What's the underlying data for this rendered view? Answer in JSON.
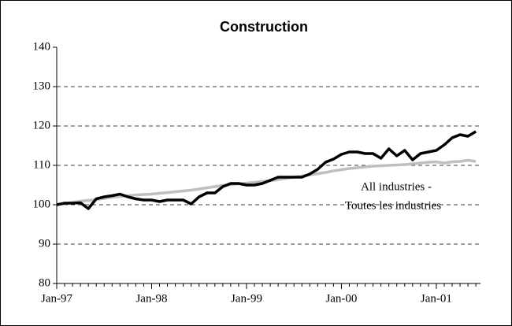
{
  "chart_data": {
    "type": "line",
    "title": "Construction",
    "categories": [
      "Jan-97",
      null,
      null,
      null,
      null,
      null,
      null,
      null,
      null,
      null,
      null,
      null,
      "Jan-98",
      null,
      null,
      null,
      null,
      null,
      null,
      null,
      null,
      null,
      null,
      null,
      "Jan-99",
      null,
      null,
      null,
      null,
      null,
      null,
      null,
      null,
      null,
      null,
      null,
      "Jan-00",
      null,
      null,
      null,
      null,
      null,
      null,
      null,
      null,
      null,
      null,
      null,
      "Jan-01",
      null,
      null,
      null,
      null,
      null
    ],
    "series": [
      {
        "color": "#bfbfbf",
        "values": [
          100,
          100.3,
          100.6,
          100.9,
          101.1,
          101.3,
          101.6,
          101.9,
          102.1,
          102.3,
          102.5,
          102.6,
          102.7,
          102.9,
          103.1,
          103.3,
          103.5,
          103.7,
          104,
          104.3,
          104.6,
          104.9,
          105.1,
          105.3,
          105.5,
          105.7,
          105.9,
          106.1,
          106.4,
          106.7,
          107,
          107.3,
          107.6,
          107.9,
          108.2,
          108.6,
          108.9,
          109.2,
          109.4,
          109.6,
          109.8,
          109.9,
          110,
          110.1,
          110.2,
          110.4,
          110.6,
          110.8,
          110.9,
          110.6,
          110.9,
          111,
          111.3,
          111
        ]
      },
      {
        "color": "#000000",
        "values": [
          100,
          100.4,
          100.4,
          100.5,
          99,
          101.5,
          102,
          102.3,
          102.7,
          102,
          101.5,
          101.2,
          101.2,
          100.8,
          101.2,
          101.2,
          101.2,
          100.2,
          102,
          103,
          103,
          104.6,
          105.4,
          105.4,
          105,
          105,
          105.4,
          106.2,
          107,
          107,
          107,
          107,
          107.8,
          109,
          110.8,
          111.6,
          112.8,
          113.4,
          113.4,
          113,
          113,
          111.8,
          114.2,
          112.4,
          113.8,
          111.4,
          113,
          113.4,
          113.8,
          115.2,
          117,
          117.8,
          117.4,
          118.6
        ]
      }
    ],
    "annotations": [
      "All industries -",
      "Toutes les industries"
    ],
    "ylim": [
      80,
      140
    ],
    "yticks": [
      80,
      90,
      100,
      110,
      120,
      130,
      140
    ],
    "grid": true
  }
}
